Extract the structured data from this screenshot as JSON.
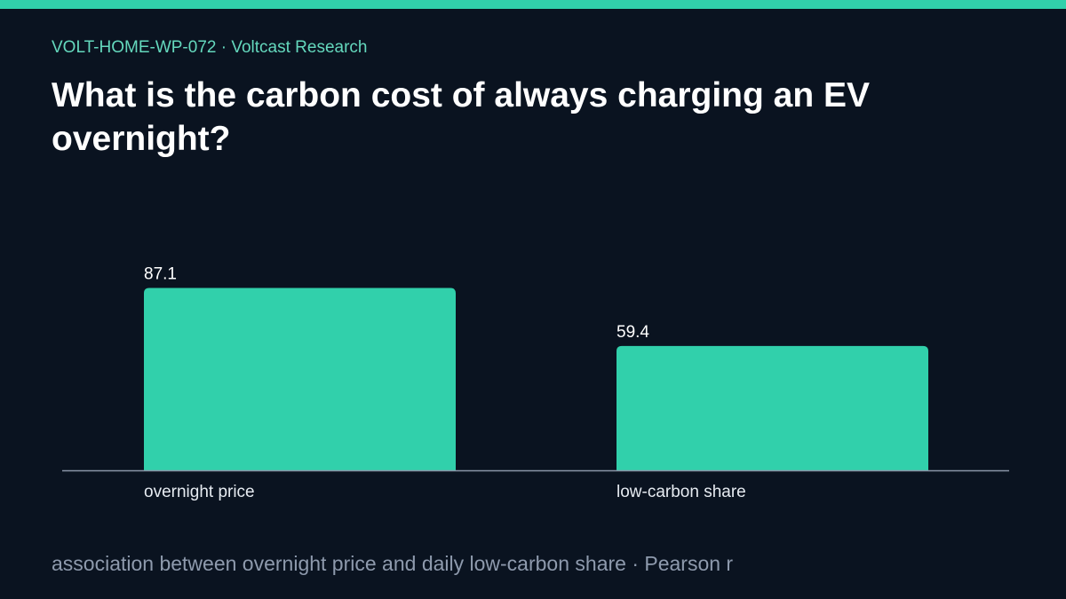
{
  "header": {
    "eyebrow": "VOLT-HOME-WP-072 · Voltcast Research",
    "title": "What is the carbon cost of always charging an EV overnight?"
  },
  "footnote": "association between overnight price and daily low-carbon share · Pearson r",
  "colors": {
    "background": "#0a1320",
    "accent": "#31d0ab",
    "eyebrow": "#64d8bd",
    "axis": "#8a95a8",
    "footnote": "#8e9aad"
  },
  "chart_data": {
    "type": "bar",
    "categories": [
      "overnight price",
      "low-carbon share"
    ],
    "values": [
      87.1,
      59.4
    ],
    "value_labels": [
      "87.1",
      "59.4"
    ],
    "title": "",
    "xlabel": "",
    "ylabel": "",
    "ylim": [
      0,
      100
    ],
    "grid": false,
    "legend": "none"
  }
}
